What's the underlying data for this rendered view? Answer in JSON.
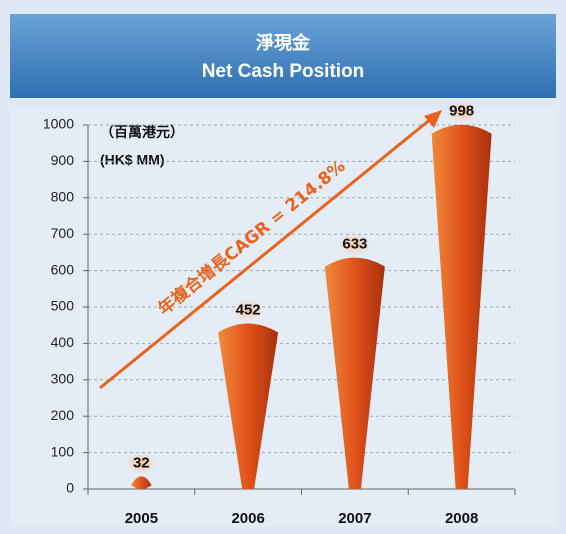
{
  "chart_data": {
    "type": "bar",
    "title": "淨現金",
    "subtitle": "Net Cash Position",
    "unit_label_zh": "（百萬港元）",
    "unit_label_en": "(HK$ MM)",
    "annotation": "年複合增長CAGR = 214.8%",
    "categories": [
      "2005",
      "2006",
      "2007",
      "2008"
    ],
    "values": [
      32,
      452,
      633,
      998
    ],
    "color": "#e8641e",
    "ylim": [
      0,
      1000
    ],
    "yticks": [
      0,
      100,
      200,
      300,
      400,
      500,
      600,
      700,
      800,
      900,
      1000
    ],
    "grid": true
  }
}
